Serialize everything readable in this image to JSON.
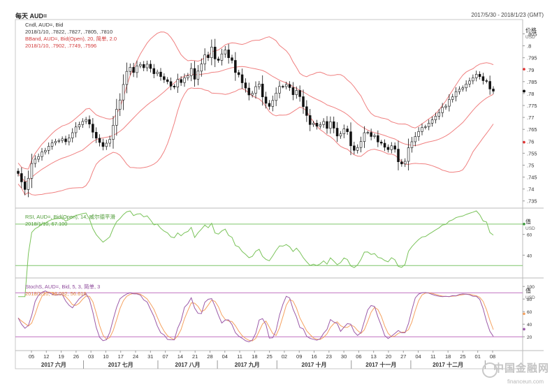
{
  "header": {
    "title": "每天 AUD=",
    "range": "2017/5/30 - 2018/1/23 (GMT)"
  },
  "watermark": {
    "cn": "中国金融网",
    "en": "financeun.com"
  },
  "colors": {
    "candle_up": "#ffffff",
    "candle_down": "#111111",
    "bollinger": "#f08080",
    "rsi": "#7ac35a",
    "rsi_bands": "#7fc66a",
    "stoch_k": "#9b5aa8",
    "stoch_d": "#f5a260",
    "stoch_bands": "#c070c0",
    "last_marker_red": "#e03030",
    "last_marker_green": "#3a9a3a",
    "axis_line": "#999999"
  },
  "chart_data": [
    {
      "type": "candlestick",
      "panel": "price",
      "legend": [
        "Cndl, AUD=, Bid",
        "2018/1/10, .7822, .7827, .7805, .7810",
        "BBand, AUD=, Bid(Open), 20, 简单, 2.0",
        "2018/1/10, .7902, .7749, .7596"
      ],
      "y_axis_title": "价格",
      "y_axis_unit": "USD",
      "y_ticks": [
        ".735",
        ".74",
        ".745",
        ".75",
        ".755",
        ".76",
        ".765",
        ".77",
        ".775",
        ".78",
        ".785",
        ".79",
        ".795",
        ".8",
        ".805"
      ],
      "ylim": [
        0.732,
        0.811
      ],
      "x_ticks": [
        "05",
        "12",
        "19",
        "26",
        "03",
        "10",
        "17",
        "24",
        "31",
        "07",
        "14",
        "21",
        "28",
        "04",
        "11",
        "18",
        "25",
        "02",
        "09",
        "16",
        "23",
        "30",
        "06",
        "13",
        "20",
        "27",
        "04",
        "11",
        "18",
        "25",
        "01",
        "08"
      ],
      "months": [
        "2017 六月",
        "2017 七月",
        "2017 八月",
        "2017 九月",
        "2017 十月",
        "2017 十一月",
        "2017 十二月"
      ],
      "close": [
        0.7465,
        0.743,
        0.7398,
        0.7445,
        0.7507,
        0.7525,
        0.7536,
        0.7555,
        0.7562,
        0.7579,
        0.7593,
        0.76,
        0.7603,
        0.761,
        0.7598,
        0.7614,
        0.7636,
        0.766,
        0.767,
        0.7683,
        0.7691,
        0.7672,
        0.7638,
        0.7613,
        0.7595,
        0.7578,
        0.7592,
        0.7608,
        0.7667,
        0.7734,
        0.7773,
        0.7838,
        0.7893,
        0.791,
        0.7888,
        0.7916,
        0.7922,
        0.7908,
        0.7923,
        0.7905,
        0.7883,
        0.789,
        0.7871,
        0.7858,
        0.785,
        0.7831,
        0.7827,
        0.7859,
        0.7846,
        0.7866,
        0.7875,
        0.7905,
        0.786,
        0.7894,
        0.7924,
        0.7962,
        0.795,
        0.7995,
        0.7945,
        0.7939,
        0.7966,
        0.7983,
        0.795,
        0.7939,
        0.7888,
        0.7879,
        0.7845,
        0.7823,
        0.7794,
        0.7801,
        0.7829,
        0.784,
        0.7786,
        0.7759,
        0.7746,
        0.7771,
        0.7802,
        0.783,
        0.7829,
        0.7838,
        0.7825,
        0.7795,
        0.7813,
        0.7787,
        0.7745,
        0.7708,
        0.767,
        0.7676,
        0.7663,
        0.767,
        0.7683,
        0.7654,
        0.7682,
        0.7655,
        0.7622,
        0.7631,
        0.7652,
        0.764,
        0.7581,
        0.7562,
        0.7574,
        0.7599,
        0.7636,
        0.7637,
        0.762,
        0.7624,
        0.7597,
        0.7592,
        0.7575,
        0.7565,
        0.7581,
        0.7567,
        0.7514,
        0.7505,
        0.7516,
        0.7573,
        0.7598,
        0.762,
        0.7641,
        0.7658,
        0.7661,
        0.7676,
        0.769,
        0.7705,
        0.772,
        0.7742,
        0.7747,
        0.7775,
        0.7786,
        0.7808,
        0.7818,
        0.7824,
        0.784,
        0.7853,
        0.7866,
        0.7881,
        0.7871,
        0.7854,
        0.7851,
        0.7819,
        0.781
      ],
      "bollinger_period": 20,
      "bollinger_stddev": 2.0,
      "last_values": {
        "upper": 0.7902,
        "middle": 0.7749,
        "lower": 0.7596,
        "close": 0.781
      }
    },
    {
      "type": "line",
      "panel": "rsi",
      "legend": [
        "RSI, AUD=, Bid(Open), 14, 威尔德平滑",
        "2018/1/10, 67.100"
      ],
      "y_axis_title": "值",
      "y_axis_unit": "USD",
      "y_ticks": [
        "40",
        "60"
      ],
      "ylim": [
        18,
        82
      ],
      "overbought": 70,
      "oversold": 30,
      "period": 14
    },
    {
      "type": "line",
      "panel": "stochastic",
      "legend": [
        "StochS, AUD=, Bid, 5, 3, 简单, 3",
        "2018/1/10, 32.092, 56.618"
      ],
      "y_axis_title": "值",
      "y_axis_unit": "USD",
      "y_ticks": [
        "20",
        "40",
        "60",
        "80",
        "100"
      ],
      "ylim": [
        -2,
        108
      ],
      "upper_band": 90,
      "lower_band": 20,
      "last_values": {
        "k": 32.092,
        "d": 56.618
      }
    }
  ]
}
